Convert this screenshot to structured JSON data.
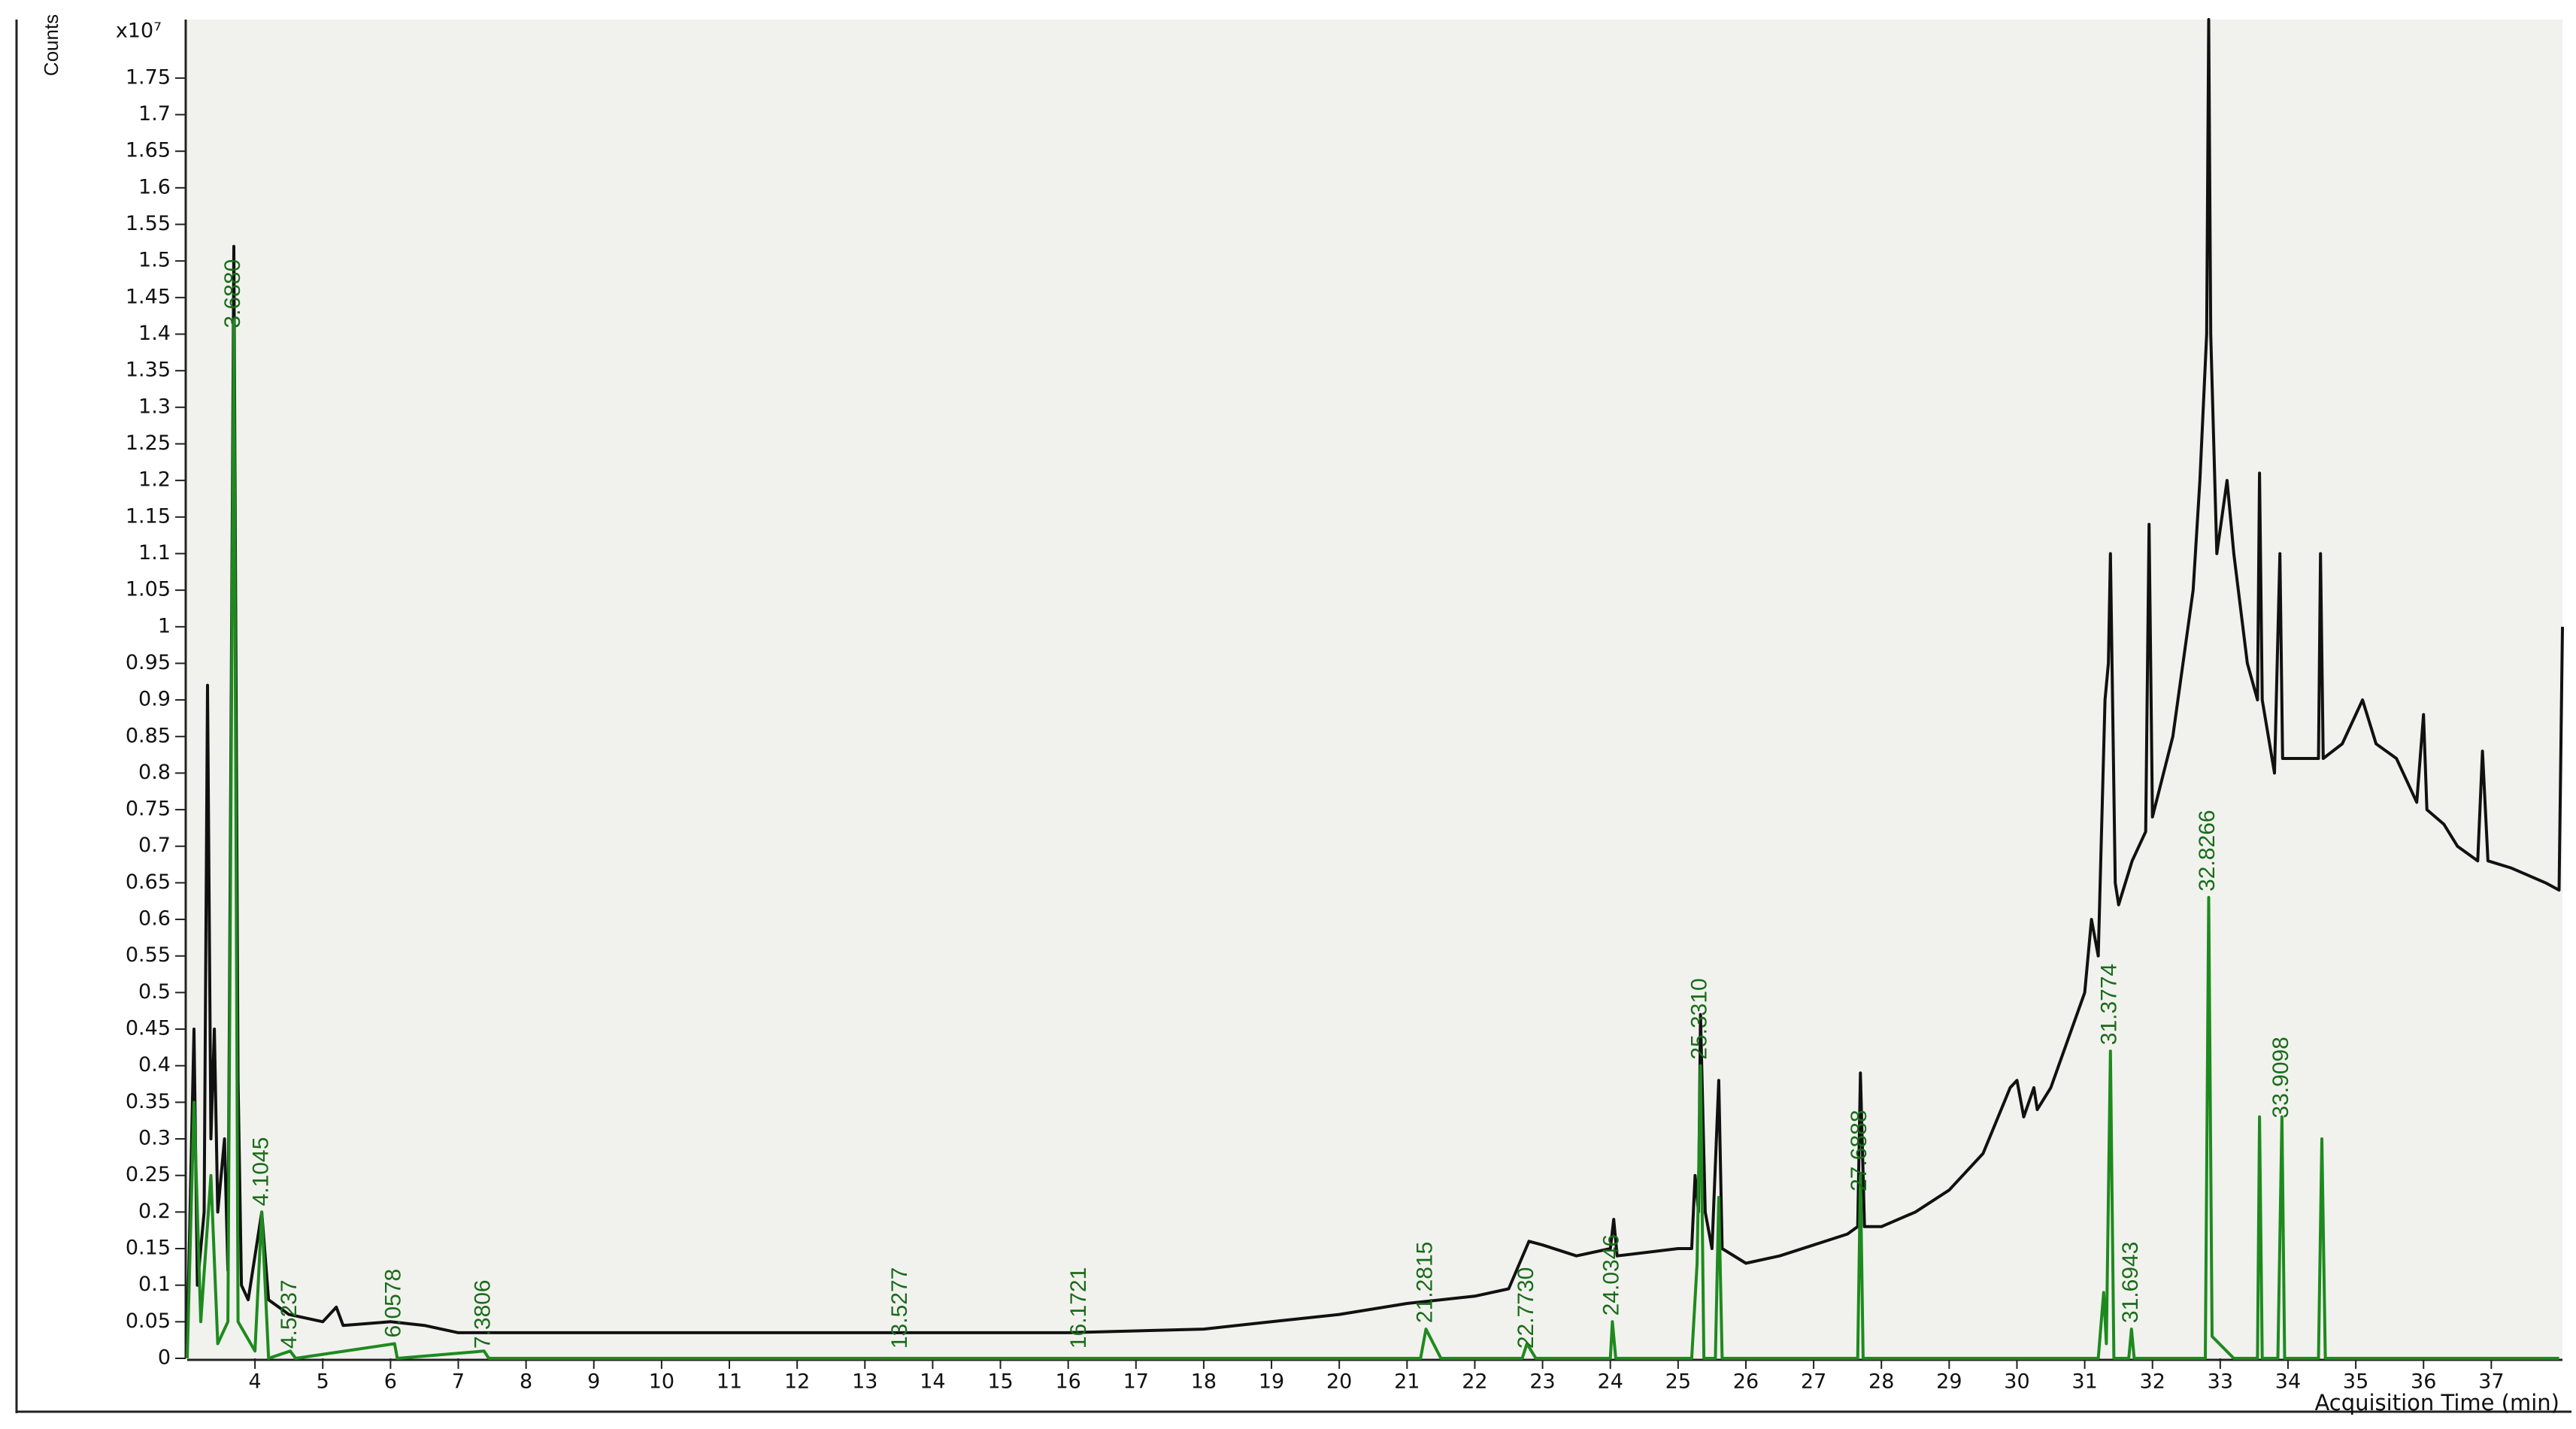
{
  "chart_data": {
    "type": "line",
    "y_label": "Counts",
    "y_multiplier": "x10⁷",
    "x_label": "Acquisition Time (min)",
    "xlim": [
      3,
      38.05
    ],
    "ylim": [
      0,
      1.83
    ],
    "xticks": [
      4,
      5,
      6,
      7,
      8,
      9,
      10,
      11,
      12,
      13,
      14,
      15,
      16,
      17,
      18,
      19,
      20,
      21,
      22,
      23,
      24,
      25,
      26,
      27,
      28,
      29,
      30,
      31,
      32,
      33,
      34,
      35,
      36,
      37
    ],
    "yticks": [
      0,
      0.05,
      0.1,
      0.15,
      0.2,
      0.25,
      0.3,
      0.35,
      0.4,
      0.45,
      0.5,
      0.55,
      0.6,
      0.65,
      0.7,
      0.75,
      0.8,
      0.85,
      0.9,
      0.95,
      1,
      1.05,
      1.1,
      1.15,
      1.2,
      1.25,
      1.3,
      1.35,
      1.4,
      1.45,
      1.5,
      1.55,
      1.6,
      1.65,
      1.7,
      1.75
    ],
    "series": [
      {
        "color": "#111111",
        "x": [
          3.0,
          3.1,
          3.15,
          3.25,
          3.3,
          3.35,
          3.4,
          3.45,
          3.55,
          3.6,
          3.688,
          3.75,
          3.8,
          3.9,
          4.1,
          4.2,
          4.5,
          5,
          5.2,
          5.3,
          6,
          6.5,
          7,
          8,
          10,
          12,
          14,
          16,
          18,
          19,
          20,
          21,
          22,
          22.5,
          22.8,
          23,
          23.5,
          24,
          24.05,
          24.1,
          25,
          25.2,
          25.25,
          25.3,
          25.33,
          25.4,
          25.5,
          25.6,
          25.65,
          26,
          26.5,
          27,
          27.5,
          27.65,
          27.69,
          27.75,
          28,
          28.5,
          29,
          29.5,
          29.9,
          30,
          30.1,
          30.25,
          30.3,
          30.5,
          31,
          31.1,
          31.2,
          31.3,
          31.35,
          31.38,
          31.45,
          31.5,
          31.7,
          31.9,
          31.95,
          32.0,
          32.3,
          32.6,
          32.7,
          32.8,
          32.83,
          32.86,
          32.95,
          33.1,
          33.2,
          33.4,
          33.55,
          33.58,
          33.62,
          33.8,
          33.88,
          33.92,
          34.2,
          34.45,
          34.48,
          34.52,
          34.8,
          35.0,
          35.1,
          35.3,
          35.6,
          35.9,
          36.0,
          36.05,
          36.3,
          36.5,
          36.8,
          36.87,
          36.95,
          37.3,
          37.8,
          38.0,
          38.05
        ],
        "values": [
          0.02,
          0.45,
          0.1,
          0.2,
          0.92,
          0.3,
          0.45,
          0.2,
          0.3,
          0.12,
          1.52,
          0.38,
          0.1,
          0.08,
          0.2,
          0.08,
          0.06,
          0.05,
          0.07,
          0.045,
          0.05,
          0.045,
          0.035,
          0.035,
          0.035,
          0.035,
          0.035,
          0.035,
          0.04,
          0.05,
          0.06,
          0.075,
          0.085,
          0.095,
          0.16,
          0.155,
          0.14,
          0.15,
          0.19,
          0.14,
          0.15,
          0.15,
          0.25,
          0.2,
          0.47,
          0.2,
          0.15,
          0.38,
          0.15,
          0.13,
          0.14,
          0.155,
          0.17,
          0.18,
          0.39,
          0.18,
          0.18,
          0.2,
          0.23,
          0.28,
          0.37,
          0.38,
          0.33,
          0.37,
          0.34,
          0.37,
          0.5,
          0.6,
          0.55,
          0.9,
          0.95,
          1.1,
          0.65,
          0.62,
          0.68,
          0.72,
          1.14,
          0.74,
          0.85,
          1.05,
          1.2,
          1.4,
          1.83,
          1.4,
          1.1,
          1.2,
          1.1,
          0.95,
          0.9,
          1.21,
          0.9,
          0.8,
          1.1,
          0.82,
          0.82,
          0.82,
          1.1,
          0.82,
          0.84,
          0.88,
          0.9,
          0.84,
          0.82,
          0.76,
          0.88,
          0.75,
          0.73,
          0.7,
          0.68,
          0.83,
          0.68,
          0.67,
          0.65,
          0.64,
          1.0
        ]
      },
      {
        "color": "#1e8a1e",
        "x": [
          3.0,
          3.1,
          3.2,
          3.35,
          3.45,
          3.6,
          3.688,
          3.75,
          4.0,
          4.1,
          4.2,
          4.52,
          4.6,
          6.06,
          6.1,
          7.38,
          7.45,
          21.2,
          21.28,
          21.5,
          22.7,
          22.77,
          22.9,
          24.0,
          24.03,
          24.08,
          25.2,
          25.28,
          25.33,
          25.38,
          25.55,
          25.6,
          25.65,
          27.65,
          27.69,
          27.73,
          31.2,
          31.28,
          31.32,
          31.38,
          31.43,
          31.65,
          31.69,
          31.73,
          32.78,
          32.83,
          32.88,
          33.2,
          33.55,
          33.58,
          33.62,
          33.85,
          33.91,
          33.95,
          34.45,
          34.5,
          34.55,
          38.0
        ],
        "values": [
          0,
          0.35,
          0.05,
          0.25,
          0.02,
          0.05,
          1.42,
          0.05,
          0.01,
          0.2,
          0,
          0.01,
          0,
          0.02,
          0,
          0.01,
          0,
          0,
          0.04,
          0,
          0,
          0.02,
          0,
          0,
          0.05,
          0,
          0,
          0.13,
          0.4,
          0,
          0,
          0.22,
          0,
          0,
          0.25,
          0,
          0,
          0.09,
          0.02,
          0.42,
          0,
          0,
          0.04,
          0,
          0,
          0.63,
          0.03,
          0,
          0,
          0.33,
          0,
          0,
          0.33,
          0,
          0,
          0.3,
          0,
          0
        ]
      }
    ],
    "annotations": [
      {
        "text": "3.6880",
        "x": 3.688,
        "y": 1.4
      },
      {
        "text": "4.1045",
        "x": 4.1045,
        "y": 0.2
      },
      {
        "text": "4.5237",
        "x": 4.5237,
        "y": 0.005
      },
      {
        "text": "6.0578",
        "x": 6.0578,
        "y": 0.02
      },
      {
        "text": "7.3806",
        "x": 7.3806,
        "y": 0.005
      },
      {
        "text": "13.5277",
        "x": 13.5277,
        "y": 0.005
      },
      {
        "text": "16.1721",
        "x": 16.1721,
        "y": 0.005
      },
      {
        "text": "21.2815",
        "x": 21.2815,
        "y": 0.04
      },
      {
        "text": "22.7730",
        "x": 22.773,
        "y": 0.005
      },
      {
        "text": "24.0346",
        "x": 24.0346,
        "y": 0.05
      },
      {
        "text": "25.3310",
        "x": 25.331,
        "y": 0.4
      },
      {
        "text": "27.6888",
        "x": 27.6888,
        "y": 0.22
      },
      {
        "text": "31.3774",
        "x": 31.3774,
        "y": 0.42
      },
      {
        "text": "31.6943",
        "x": 31.6943,
        "y": 0.04
      },
      {
        "text": "32.8266",
        "x": 32.8266,
        "y": 0.63
      },
      {
        "text": "33.9098",
        "x": 33.9098,
        "y": 0.32
      }
    ]
  }
}
